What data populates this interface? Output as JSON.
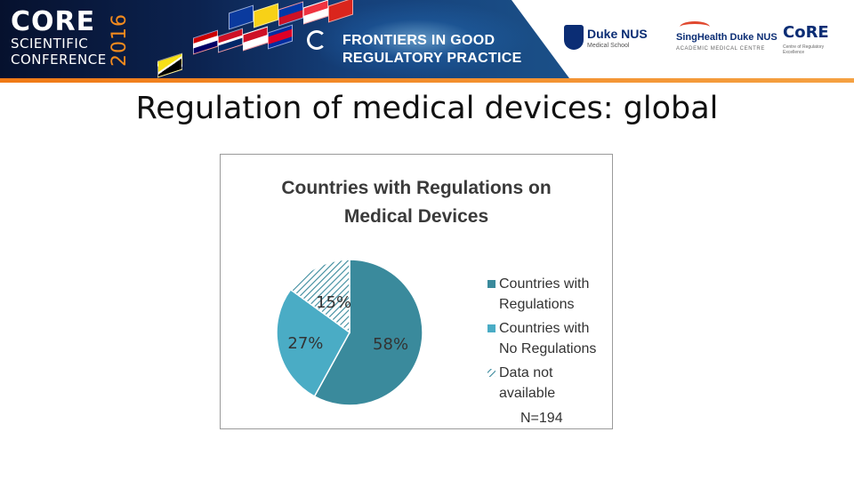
{
  "banner": {
    "logo_word": "CORE",
    "logo_line1": "SCIENTIFIC",
    "logo_line2": "CONFERENCE",
    "logo_year": "2016",
    "conference_line1": "FRONTIERS IN GOOD",
    "conference_line2": "REGULATORY PRACTICE",
    "partner1_name": "Duke NUS",
    "partner1_sub": "Medical School",
    "partner2_name": "SingHealth Duke NUS",
    "partner2_sub": "ACADEMIC MEDICAL CENTRE",
    "partner3_name": "CoRE",
    "partner3_sub": "Centre of Regulatory Excellence"
  },
  "slide": {
    "title": "Regulation of medical devices: global"
  },
  "colors": {
    "series_regulated": "#3a8a9c",
    "series_not_regulated": "#4aacc5",
    "series_unavailable_hatch": "#3a8a9c",
    "banner_orange": "#f28a1e",
    "banner_navy": "#0c2350"
  },
  "chart_data": {
    "type": "pie",
    "title_line1": "Countries with Regulations on",
    "title_line2": "Medical Devices",
    "categories": [
      "Countries with Regulations",
      "Countries with No Regulations",
      "Data not available"
    ],
    "legend_lines": [
      [
        "Countries with",
        "Regulations"
      ],
      [
        "Countries with",
        "No Regulations"
      ],
      [
        "Data not",
        "available"
      ]
    ],
    "values": [
      58,
      27,
      15
    ],
    "data_labels": [
      "58%",
      "27%",
      "15%"
    ],
    "note": "N=194",
    "legend_position": "right",
    "start_angle_deg": 0,
    "direction": "clockwise"
  }
}
